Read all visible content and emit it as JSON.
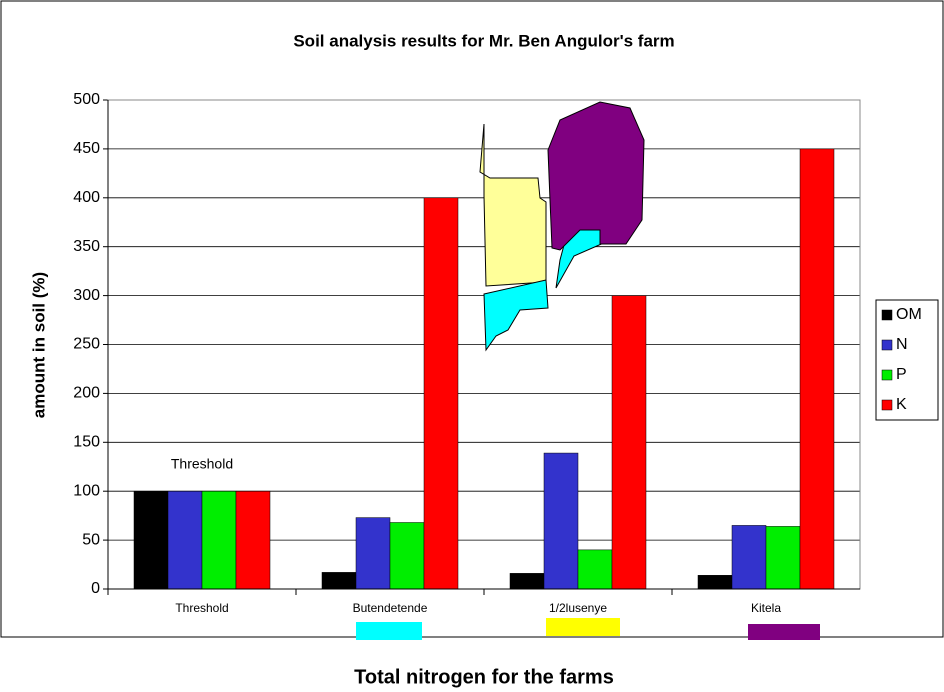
{
  "chart_data": {
    "type": "bar",
    "title": "Soil analysis results for Mr. Ben Angulor's farm",
    "x_label": "Total nitrogen for the farms",
    "y_label": "amount in soil (%)",
    "annotation": "Threshold",
    "categories": [
      "Threshold",
      "Butendetende",
      "1/2lusenye",
      "Kitela"
    ],
    "series": [
      {
        "name": "OM",
        "color": "#000000",
        "values": [
          100,
          17,
          16,
          14
        ]
      },
      {
        "name": "N",
        "color": "#3333cc",
        "values": [
          100,
          73,
          139,
          65
        ]
      },
      {
        "name": "P",
        "color": "#00ee00",
        "values": [
          100,
          68,
          40,
          64
        ]
      },
      {
        "name": "K",
        "color": "#ff0000",
        "values": [
          100,
          400,
          300,
          450
        ]
      }
    ],
    "ylim": [
      0,
      500
    ],
    "yticks": [
      0,
      50,
      100,
      150,
      200,
      250,
      300,
      350,
      400,
      450,
      500
    ],
    "grid": true,
    "legend": "right"
  }
}
